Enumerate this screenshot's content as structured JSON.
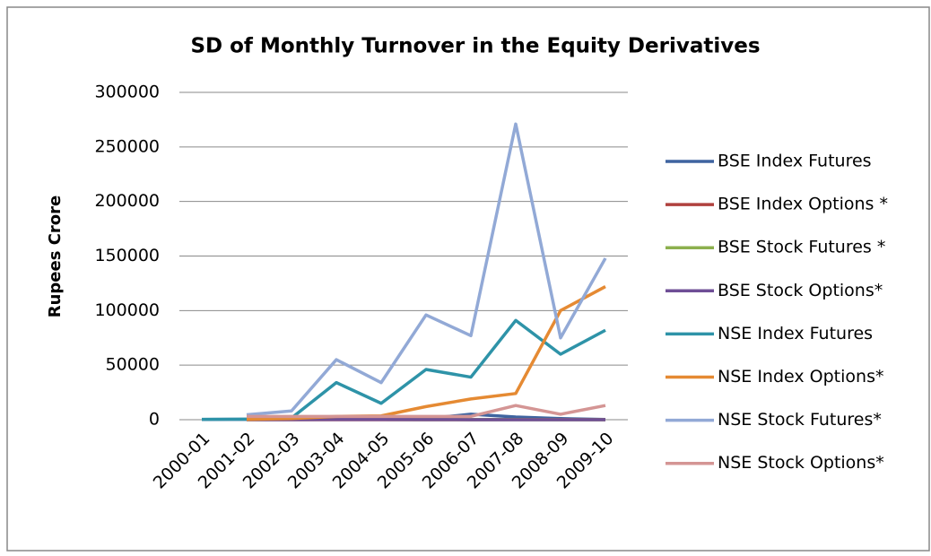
{
  "chart_data": {
    "type": "line",
    "title": "SD of Monthly Turnover in the Equity Derivatives",
    "y_label": "Rupees Crore",
    "categories": [
      "2000-01",
      "2001-02",
      "2002-03",
      "2003-04",
      "2004-05",
      "2005-06",
      "2006-07",
      "2007-08",
      "2008-09",
      "2009-10"
    ],
    "series": [
      {
        "name": "BSE Index Futures",
        "color": "#3f64a0",
        "values": [
          200,
          300,
          200,
          300,
          500,
          1000,
          5000,
          2500,
          1000,
          200
        ]
      },
      {
        "name": "BSE Index Options *",
        "color": "#b0413e",
        "values": [
          null,
          0,
          0,
          0,
          0,
          0,
          0,
          100,
          100,
          0
        ]
      },
      {
        "name": "BSE Stock Futures *",
        "color": "#8cb04e",
        "values": [
          null,
          100,
          200,
          300,
          200,
          100,
          100,
          100,
          50,
          0
        ]
      },
      {
        "name": "BSE Stock Options*",
        "color": "#6f4f96",
        "values": [
          null,
          100,
          100,
          200,
          200,
          100,
          50,
          50,
          20,
          0
        ]
      },
      {
        "name": "NSE Index Futures",
        "color": "#2e93a8",
        "values": [
          300,
          500,
          1500,
          34000,
          15000,
          46000,
          39000,
          91000,
          60000,
          82000
        ]
      },
      {
        "name": "NSE Index Options*",
        "color": "#e58a33",
        "values": [
          null,
          300,
          1000,
          3000,
          3500,
          12000,
          19000,
          24000,
          100000,
          122000
        ]
      },
      {
        "name": "NSE Stock Futures*",
        "color": "#92a9d6",
        "values": [
          null,
          4500,
          8000,
          55000,
          34000,
          96000,
          77000,
          271000,
          75000,
          148000
        ]
      },
      {
        "name": "NSE Stock Options*",
        "color": "#d49594",
        "values": [
          null,
          3000,
          3000,
          3000,
          3000,
          3000,
          3000,
          13000,
          5000,
          13000
        ]
      }
    ],
    "ylim": [
      0,
      300000
    ],
    "yticks": [
      0,
      50000,
      100000,
      150000,
      200000,
      250000,
      300000
    ],
    "grid": true,
    "legend": "right"
  }
}
